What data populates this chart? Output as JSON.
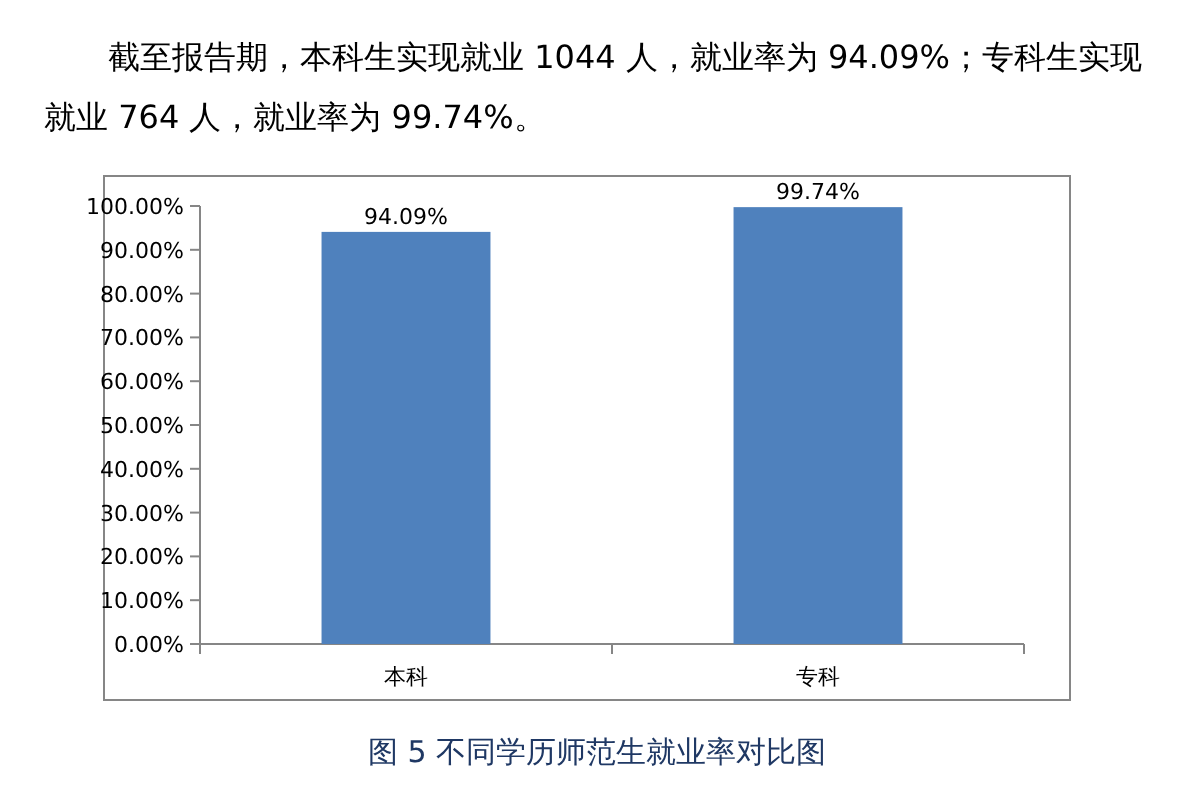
{
  "chart_data": {
    "type": "bar",
    "title": "图 5 不同学历师范生就业率对比图",
    "annotations": [
      "截至报告期，本科生实现就业 1044 人，就业率为 94.09%；专科生实现就业 764 人，就业率为 99.74%。"
    ],
    "categories": [
      "本科",
      "专科"
    ],
    "values": [
      94.09,
      99.74
    ],
    "value_labels": [
      "94.09%",
      "99.74%"
    ],
    "color": "#4f81bd",
    "ylim": [
      0,
      100
    ],
    "yticks": [
      {
        "value": 0,
        "label": "0.00%"
      },
      {
        "value": 10,
        "label": "10.00%"
      },
      {
        "value": 20,
        "label": "20.00%"
      },
      {
        "value": 30,
        "label": "30.00%"
      },
      {
        "value": 40,
        "label": "40.00%"
      },
      {
        "value": 50,
        "label": "50.00%"
      },
      {
        "value": 60,
        "label": "60.00%"
      },
      {
        "value": 70,
        "label": "70.00%"
      },
      {
        "value": 80,
        "label": "80.00%"
      },
      {
        "value": 90,
        "label": "90.00%"
      },
      {
        "value": 100,
        "label": "100.00%"
      }
    ]
  }
}
